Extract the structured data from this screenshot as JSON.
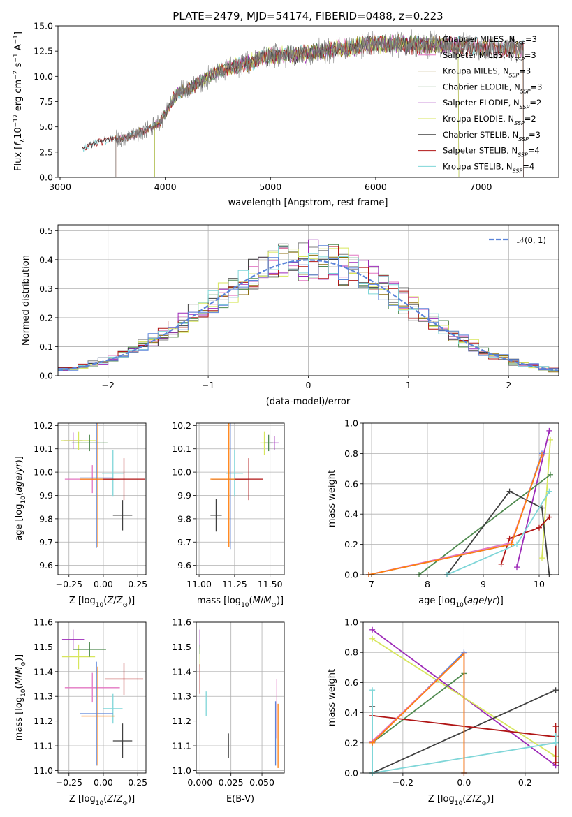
{
  "chart_data": [
    {
      "type": "line",
      "title": "PLATE=2479, MJD=54174, FIBERID=0488, z=0.223",
      "xlabel": "wavelength [Angstrom, rest frame]",
      "ylabel": "Flux [f_λ 10^-17 erg cm^-2 s^-1 A^-1]",
      "xlim": [
        2980,
        7740
      ],
      "ylim": [
        0,
        15
      ],
      "xticks": [
        "3000",
        "4000",
        "5000",
        "6000",
        "7000"
      ],
      "yticks": [
        "0.0",
        "2.5",
        "5.0",
        "7.5",
        "10.0",
        "12.5",
        "15.0"
      ],
      "grid": false,
      "legend_position": "top-right",
      "series": [
        {
          "name": "Chabrier MILES, N_SSP=3",
          "color": "#7f7f7f",
          "lo": 3530,
          "hi": 7405
        },
        {
          "name": "Salpeter MILES, N_SSP=3",
          "color": "#e377c2",
          "lo": 3530,
          "hi": 7405
        },
        {
          "name": "Kroupa MILES, N_SSP=3",
          "color": "#8b6e0f",
          "lo": 3530,
          "hi": 7405
        },
        {
          "name": "Chabrier ELODIE, N_SSP=3",
          "color": "#4f8a4f",
          "lo": 3900,
          "hi": 6790
        },
        {
          "name": "Salpeter ELODIE, N_SSP=2",
          "color": "#9d2ab8",
          "lo": 3900,
          "hi": 6790
        },
        {
          "name": "Kroupa ELODIE, N_SSP=2",
          "color": "#d7e65c",
          "lo": 3900,
          "hi": 6790
        },
        {
          "name": "Chabrier STELIB, N_SSP=3",
          "color": "#404040",
          "lo": 3210,
          "hi": 7405
        },
        {
          "name": "Salpeter STELIB, N_SSP=4",
          "color": "#b01515",
          "lo": 3210,
          "hi": 7405
        },
        {
          "name": "Kroupa STELIB, N_SSP=4",
          "color": "#7fd6d8",
          "lo": 3210,
          "hi": 7405
        }
      ],
      "continuum": {
        "x": [
          3210,
          3400,
          3600,
          3800,
          3950,
          4100,
          4300,
          4500,
          4700,
          5000,
          5300,
          5600,
          5900,
          6200,
          6500,
          6800,
          7100,
          7405
        ],
        "y": [
          2.9,
          3.6,
          3.9,
          4.6,
          5.4,
          8.2,
          9.2,
          10.5,
          11.1,
          12.0,
          12.2,
          12.6,
          13.1,
          13.2,
          13.1,
          13.0,
          12.8,
          12.7
        ]
      }
    },
    {
      "type": "histogram",
      "xlabel": "(data-model)/error",
      "ylabel": "Normed distribution",
      "xlim": [
        -2.5,
        2.5
      ],
      "ylim": [
        0,
        0.52
      ],
      "xticks": [
        "−2",
        "−1",
        "0",
        "1",
        "2"
      ],
      "yticks": [
        "0.0",
        "0.1",
        "0.2",
        "0.3",
        "0.4",
        "0.5"
      ],
      "grid": true,
      "legend_position": "top-right",
      "reference_curve": {
        "name": "𝒩(0, 1)",
        "color": "#5b84d9"
      },
      "series_colors": [
        "#7f7f7f",
        "#e377c2",
        "#8b6e0f",
        "#4f8a4f",
        "#9d2ab8",
        "#d7e65c",
        "#404040",
        "#b01515",
        "#7fd6d8",
        "#5b84d9"
      ]
    },
    {
      "type": "errorbar",
      "xlabel": "Z [log10(Z/Z⊙)]",
      "ylabel": "age  [log10(age/yr)]",
      "xlim": [
        -0.33,
        0.31
      ],
      "ylim": [
        9.56,
        10.21
      ],
      "xticks": [
        "−0.25",
        "0.00",
        "0.25"
      ],
      "yticks": [
        "9.6",
        "9.7",
        "9.8",
        "9.9",
        "10.0",
        "10.1",
        "10.2"
      ],
      "grid": true,
      "points": [
        {
          "x": -0.22,
          "y": 10.135,
          "xerr": 0.07,
          "yerr": 0.035,
          "color": "#9d2ab8"
        },
        {
          "x": -0.18,
          "y": 10.135,
          "xerr": 0.13,
          "yerr": 0.04,
          "color": "#d7e65c"
        },
        {
          "x": -0.1,
          "y": 10.125,
          "xerr": 0.13,
          "yerr": 0.035,
          "color": "#4f8a4f"
        },
        {
          "x": -0.08,
          "y": 9.97,
          "xerr": 0.2,
          "yerr": 0.06,
          "color": "#e377c2"
        },
        {
          "x": 0.07,
          "y": 9.995,
          "xerr": 0.08,
          "yerr": 0.1,
          "color": "#7fd6d8"
        },
        {
          "x": -0.05,
          "y": 9.975,
          "xerr": 0.12,
          "yerr": 0.3,
          "color": "#5b84d9"
        },
        {
          "x": -0.04,
          "y": 9.97,
          "xerr": 0.13,
          "yerr": 0.29,
          "color": "#ff7f0e"
        },
        {
          "x": 0.15,
          "y": 9.97,
          "xerr": 0.15,
          "yerr": 0.09,
          "color": "#b01515"
        },
        {
          "x": 0.14,
          "y": 9.815,
          "xerr": 0.07,
          "yerr": 0.065,
          "color": "#404040"
        }
      ]
    },
    {
      "type": "errorbar",
      "xlabel": "mass [log10(M/M⊙)]",
      "xlim": [
        10.98,
        11.6
      ],
      "ylim": [
        9.56,
        10.21
      ],
      "xticks": [
        "11.00",
        "11.25",
        "11.50"
      ],
      "yticks": [
        "9.6",
        "9.7",
        "9.8",
        "9.9",
        "10.0",
        "10.1",
        "10.2"
      ],
      "grid": true,
      "points": [
        {
          "x": 11.53,
          "y": 10.125,
          "xerr": 0.03,
          "yerr": 0.03,
          "color": "#9d2ab8"
        },
        {
          "x": 11.46,
          "y": 10.125,
          "xerr": 0.03,
          "yerr": 0.05,
          "color": "#d7e65c"
        },
        {
          "x": 11.49,
          "y": 10.125,
          "xerr": 0.03,
          "yerr": 0.035,
          "color": "#4f8a4f"
        },
        {
          "x": 11.25,
          "y": 9.995,
          "xerr": 0.06,
          "yerr": 0.1,
          "color": "#7fd6d8"
        },
        {
          "x": 11.22,
          "y": 9.97,
          "xerr": 0.13,
          "yerr": 0.3,
          "color": "#5b84d9"
        },
        {
          "x": 11.21,
          "y": 9.97,
          "xerr": 0.13,
          "yerr": 0.29,
          "color": "#ff7f0e"
        },
        {
          "x": 11.35,
          "y": 9.97,
          "xerr": 0.1,
          "yerr": 0.09,
          "color": "#b01515"
        },
        {
          "x": 11.12,
          "y": 9.815,
          "xerr": 0.04,
          "yerr": 0.07,
          "color": "#404040"
        }
      ]
    },
    {
      "type": "line",
      "xlabel": "age  [log10(age/yr)]",
      "ylabel": "mass weight",
      "xlim": [
        6.85,
        10.35
      ],
      "ylim": [
        0,
        1
      ],
      "xticks": [
        "7",
        "8",
        "9",
        "10"
      ],
      "yticks": [
        "0.0",
        "0.2",
        "0.4",
        "0.6",
        "0.8",
        "1.0"
      ],
      "grid": true,
      "series": [
        {
          "color": "#9d2ab8",
          "x": [
            9.6,
            10.18
          ],
          "y": [
            0.05,
            0.95
          ]
        },
        {
          "color": "#d7e65c",
          "x": [
            10.05,
            10.2
          ],
          "y": [
            0.11,
            0.89
          ]
        },
        {
          "color": "#4f8a4f",
          "x": [
            7.85,
            10.2
          ],
          "y": [
            0.0,
            0.66
          ]
        },
        {
          "color": "#404040",
          "x": [
            8.35,
            9.47,
            10.05,
            10.18
          ],
          "y": [
            0.0,
            0.55,
            0.44,
            0.0
          ]
        },
        {
          "color": "#b01515",
          "x": [
            9.32,
            9.47,
            10.0,
            10.18
          ],
          "y": [
            0.07,
            0.24,
            0.31,
            0.38
          ]
        },
        {
          "color": "#7fd6d8",
          "x": [
            8.35,
            9.6,
            10.18
          ],
          "y": [
            0.0,
            0.2,
            0.55
          ]
        },
        {
          "color": "#5b84d9",
          "x": [
            6.95,
            9.5,
            10.05
          ],
          "y": [
            0.0,
            0.2,
            0.8
          ]
        },
        {
          "color": "#e377c2",
          "x": [
            6.95,
            9.5,
            10.05
          ],
          "y": [
            0.0,
            0.21,
            0.79
          ]
        },
        {
          "color": "#ff7f0e",
          "x": [
            6.95,
            9.5,
            10.05
          ],
          "y": [
            0.0,
            0.2,
            0.79
          ]
        }
      ]
    },
    {
      "type": "errorbar",
      "xlabel": "Z [log10(Z/Z⊙)]",
      "ylabel": "mass [log10(M/M⊙)]",
      "xlim": [
        -0.33,
        0.31
      ],
      "ylim": [
        10.99,
        11.6
      ],
      "xticks": [
        "−0.25",
        "0.00",
        "0.25"
      ],
      "yticks": [
        "11.0",
        "11.1",
        "11.2",
        "11.3",
        "11.4",
        "11.5",
        "11.6"
      ],
      "grid": true,
      "points": [
        {
          "x": -0.22,
          "y": 11.53,
          "xerr": 0.08,
          "yerr": 0.04,
          "color": "#9d2ab8"
        },
        {
          "x": -0.18,
          "y": 11.46,
          "xerr": 0.12,
          "yerr": 0.05,
          "color": "#d7e65c"
        },
        {
          "x": -0.1,
          "y": 11.49,
          "xerr": 0.12,
          "yerr": 0.03,
          "color": "#4f8a4f"
        },
        {
          "x": -0.08,
          "y": 11.335,
          "xerr": 0.2,
          "yerr": 0.06,
          "color": "#e377c2"
        },
        {
          "x": 0.07,
          "y": 11.25,
          "xerr": 0.07,
          "yerr": 0.06,
          "color": "#7fd6d8"
        },
        {
          "x": -0.05,
          "y": 11.23,
          "xerr": 0.12,
          "yerr": 0.21,
          "color": "#5b84d9"
        },
        {
          "x": -0.04,
          "y": 11.22,
          "xerr": 0.12,
          "yerr": 0.2,
          "color": "#ff7f0e"
        },
        {
          "x": 0.15,
          "y": 11.37,
          "xerr": 0.14,
          "yerr": 0.065,
          "color": "#b01515"
        },
        {
          "x": 0.14,
          "y": 11.12,
          "xerr": 0.07,
          "yerr": 0.07,
          "color": "#404040"
        }
      ]
    },
    {
      "type": "errorbar",
      "xlabel": "E(B-V)",
      "xlim": [
        -0.003,
        0.068
      ],
      "ylim": [
        10.99,
        11.6
      ],
      "xticks": [
        "0.000",
        "0.025",
        "0.050"
      ],
      "yticks": [
        "11.0",
        "11.1",
        "11.2",
        "11.3",
        "11.4",
        "11.5",
        "11.6"
      ],
      "grid": true,
      "points": [
        {
          "x": 0.0,
          "y": 11.53,
          "xerr": 0,
          "yerr": 0.04,
          "color": "#9d2ab8"
        },
        {
          "x": 0.0,
          "y": 11.46,
          "xerr": 0,
          "yerr": 0.04,
          "color": "#d7e65c"
        },
        {
          "x": 0.0,
          "y": 11.49,
          "xerr": 0,
          "yerr": 0.02,
          "color": "#4f8a4f"
        },
        {
          "x": 0.0,
          "y": 11.37,
          "xerr": 0,
          "yerr": 0.06,
          "color": "#b01515"
        },
        {
          "x": 0.005,
          "y": 11.27,
          "xerr": 0,
          "yerr": 0.05,
          "color": "#7fd6d8"
        },
        {
          "x": 0.023,
          "y": 11.1,
          "xerr": 0,
          "yerr": 0.05,
          "color": "#404040"
        },
        {
          "x": 0.061,
          "y": 11.15,
          "xerr": 0,
          "yerr": 0.13,
          "color": "#5b84d9"
        },
        {
          "x": 0.062,
          "y": 11.25,
          "xerr": 0,
          "yerr": 0.12,
          "color": "#e377c2"
        },
        {
          "x": 0.063,
          "y": 11.14,
          "xerr": 0,
          "yerr": 0.13,
          "color": "#ff7f0e"
        }
      ]
    },
    {
      "type": "line",
      "xlabel": "Z [log10(Z/Z⊙)]",
      "ylabel": "mass weight",
      "xlim": [
        -0.33,
        0.31
      ],
      "ylim": [
        0,
        1
      ],
      "xticks": [
        "−0.2",
        "0.0",
        "0.2"
      ],
      "yticks": [
        "0.0",
        "0.2",
        "0.4",
        "0.6",
        "0.8",
        "1.0"
      ],
      "grid": true,
      "series": [
        {
          "color": "#9d2ab8",
          "x": [
            -0.3,
            0.3
          ],
          "y": [
            0.95,
            0.05
          ]
        },
        {
          "color": "#d7e65c",
          "x": [
            -0.3,
            0.3
          ],
          "y": [
            0.89,
            0.11
          ]
        },
        {
          "color": "#4f8a4f",
          "x": [
            -0.3,
            -0.3,
            0.0,
            0.0
          ],
          "y": [
            0.0,
            0.2,
            0.66,
            0.0
          ]
        },
        {
          "color": "#404040",
          "x": [
            -0.3,
            -0.3,
            0.3
          ],
          "y": [
            0.44,
            0.0,
            0.55
          ]
        },
        {
          "color": "#b01515",
          "x": [
            -0.3,
            0.3,
            0.3,
            0.3
          ],
          "y": [
            0.38,
            0.24,
            0.31,
            0.07
          ]
        },
        {
          "color": "#7fd6d8",
          "x": [
            -0.3,
            -0.3,
            0.3,
            0.3
          ],
          "y": [
            0.55,
            0.0,
            0.2,
            0.25
          ]
        },
        {
          "color": "#5b84d9",
          "x": [
            -0.3,
            0.0,
            0.0
          ],
          "y": [
            0.2,
            0.8,
            0.0
          ]
        },
        {
          "color": "#e377c2",
          "x": [
            -0.3,
            0.0,
            0.0
          ],
          "y": [
            0.21,
            0.79,
            0.0
          ]
        },
        {
          "color": "#ff7f0e",
          "x": [
            -0.3,
            0.0,
            0.0
          ],
          "y": [
            0.2,
            0.79,
            0.0
          ]
        }
      ]
    }
  ]
}
